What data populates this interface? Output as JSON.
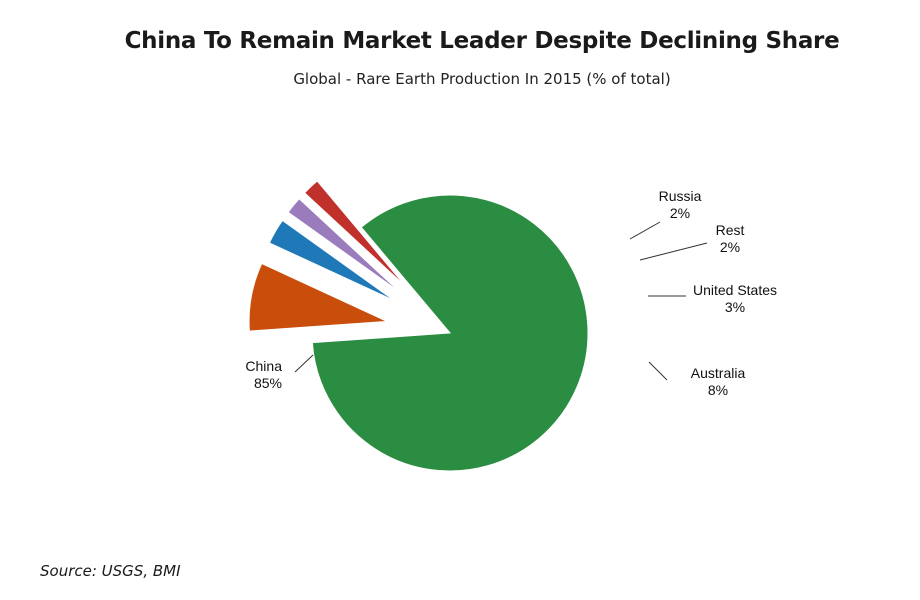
{
  "header": {
    "title": "China To Remain Market Leader Despite Declining Share",
    "subtitle": "Global - Rare Earth Production In 2015 (% of total)"
  },
  "footer": {
    "source": "Source: USGS, BMI"
  },
  "chart_data": {
    "type": "pie",
    "title": "China To Remain Market Leader Despite Declining Share",
    "subtitle": "Global - Rare Earth Production In 2015 (% of total)",
    "legend": "none",
    "slices": [
      {
        "label": "China",
        "value": 85,
        "value_label": "85%",
        "color": "#2a8d41",
        "exploded": false
      },
      {
        "label": "Australia",
        "value": 8,
        "value_label": "8%",
        "color": "#c94e0c",
        "exploded": true
      },
      {
        "label": "United States",
        "value": 3,
        "value_label": "3%",
        "color": "#1f78b8",
        "exploded": true
      },
      {
        "label": "Rest",
        "value": 2,
        "value_label": "2%",
        "color": "#9a7bbc",
        "exploded": true
      },
      {
        "label": "Russia",
        "value": 2,
        "value_label": "2%",
        "color": "#c0312b",
        "exploded": true
      }
    ]
  }
}
